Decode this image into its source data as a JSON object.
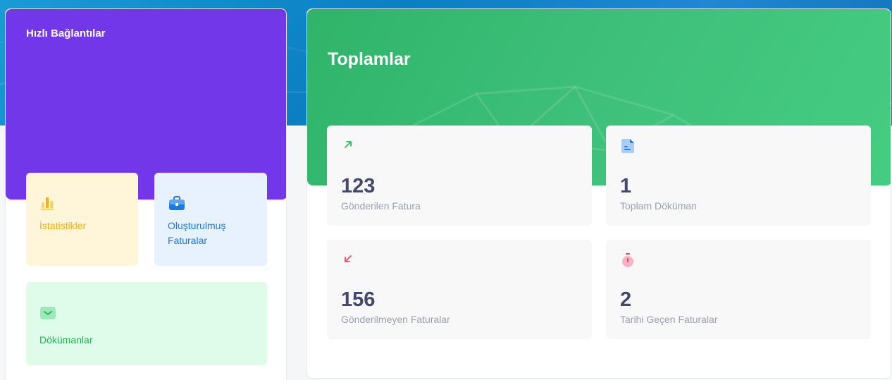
{
  "colors": {
    "header_blue": "#1a9bd6",
    "quick_links_purple": "#7337ea",
    "totals_green": "#3ec07a",
    "stats_tile_bg": "#fff6da",
    "stats_tile_text": "#f2b10c",
    "invoices_tile_bg": "#e8f2ff",
    "invoices_tile_text": "#1b7ae0",
    "docs_tile_bg": "#dffbe9",
    "docs_tile_text": "#22b457",
    "stat_value": "#414a6b",
    "stat_caption": "#9aa0ad"
  },
  "quick_links": {
    "title": "Hızlı Bağlantılar",
    "tiles": [
      {
        "label": "İstatistikler",
        "icon": "bar-chart-icon"
      },
      {
        "label": "Oluşturulmuş Faturalar",
        "icon": "briefcase-icon"
      },
      {
        "label": "Dökümanlar",
        "icon": "envelope-icon"
      }
    ]
  },
  "totals": {
    "title": "Toplamlar",
    "stats": [
      {
        "value": "123",
        "caption": "Gönderilen Fatura",
        "icon": "arrow-up-right-icon"
      },
      {
        "value": "1",
        "caption": "Toplam Döküman",
        "icon": "document-icon"
      },
      {
        "value": "156",
        "caption": "Gönderilmeyen Faturalar",
        "icon": "arrow-down-left-icon"
      },
      {
        "value": "2",
        "caption": "Tarihi Geçen Faturalar",
        "icon": "stopwatch-icon"
      }
    ]
  }
}
